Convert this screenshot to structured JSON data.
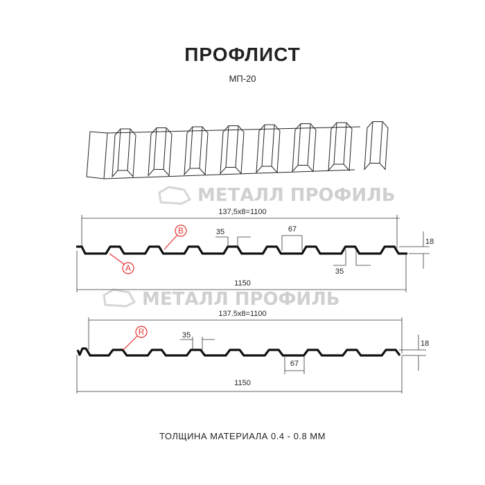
{
  "title": "ПРОФЛИСТ",
  "subtitle": "МП-20",
  "watermark": "МЕТАЛЛ ПРОФИЛЬ",
  "footer": "ТОЛЩИНА МАТЕРИАЛА 0.4 - 0.8 ММ",
  "profile_a": {
    "pitch_label": "137,5х8=1100",
    "width_label": "1150",
    "top_width_label": "35",
    "bottom_top_width_label": "35",
    "valley_label": "67",
    "height_label": "18",
    "marker_a": "A",
    "marker_b": "B"
  },
  "profile_b": {
    "pitch_label": "137.5x8=1100",
    "width_label": "1150",
    "top_width_label": "35",
    "valley_label": "67",
    "height_label": "18",
    "marker_r": "R"
  },
  "colors": {
    "marker": "#e53030",
    "profile": "#111111",
    "watermark": "#d0d0d0"
  }
}
